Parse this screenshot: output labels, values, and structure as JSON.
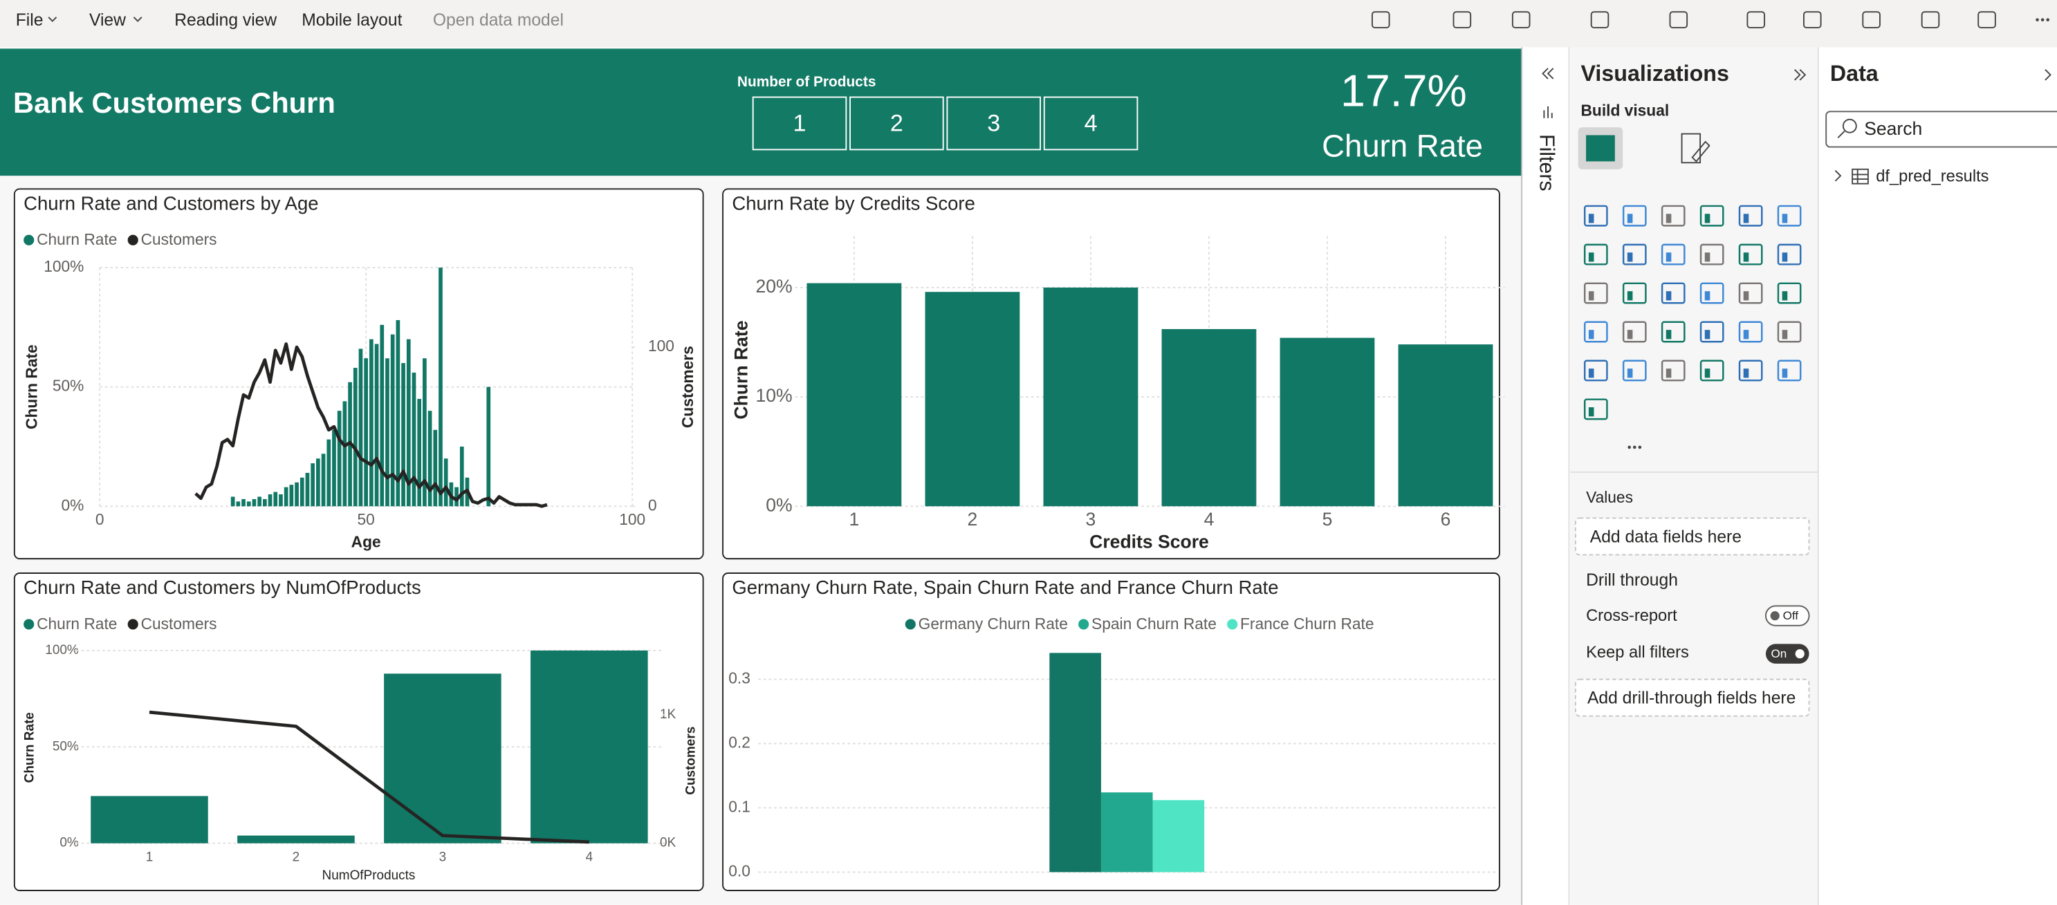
{
  "menu": {
    "items": [
      "File",
      "View",
      "Reading view",
      "Mobile layout",
      "Open data model"
    ]
  },
  "header": {
    "title": "Bank Customers Churn"
  },
  "slicer": {
    "title": "Number of Products",
    "options": [
      "1",
      "2",
      "3",
      "4"
    ]
  },
  "kpi": {
    "value": "17.7%",
    "label": "Churn Rate"
  },
  "chart_data": [
    {
      "type": "combo",
      "title": "Churn Rate and Customers by Age",
      "legend": "top-left",
      "grid": true,
      "x": [
        18,
        19,
        20,
        21,
        22,
        23,
        24,
        25,
        26,
        27,
        28,
        29,
        30,
        31,
        32,
        33,
        34,
        35,
        36,
        37,
        38,
        39,
        40,
        41,
        42,
        43,
        44,
        45,
        46,
        47,
        48,
        49,
        50,
        51,
        52,
        53,
        54,
        55,
        56,
        57,
        58,
        59,
        60,
        61,
        62,
        63,
        64,
        65,
        66,
        67,
        68,
        69,
        70,
        71,
        72,
        73,
        74,
        75,
        76,
        77,
        78,
        79,
        80,
        81,
        82,
        83,
        84
      ],
      "xlim": [
        0,
        100
      ],
      "xticks": [
        0,
        50,
        100
      ],
      "xlabel": "Age",
      "ylabel": "Churn Rate",
      "y2label": "Customers",
      "ylim": [
        0,
        100
      ],
      "yticks": [
        {
          "value": 0,
          "label": "0%"
        },
        {
          "value": 50,
          "label": "50%"
        },
        {
          "value": 100,
          "label": "100%"
        }
      ],
      "y2lim": [
        0,
        150
      ],
      "y2ticks": [
        0,
        100
      ],
      "series": [
        {
          "name": "Churn Rate",
          "kind": "bar",
          "color": "#117865",
          "values": [
            0,
            0,
            0,
            0,
            0,
            0,
            0,
            4,
            2,
            3,
            2,
            3,
            4,
            3,
            5,
            6,
            5,
            8,
            9,
            10,
            12,
            14,
            18,
            20,
            22,
            28,
            32,
            40,
            44,
            52,
            58,
            66,
            62,
            70,
            68,
            76,
            62,
            72,
            78,
            60,
            70,
            56,
            45,
            62,
            40,
            32,
            100,
            20,
            10,
            8,
            25,
            12,
            0,
            0,
            0,
            50,
            0,
            0,
            0,
            0,
            0,
            0,
            0,
            0,
            0,
            0,
            0
          ]
        },
        {
          "name": "Customers",
          "kind": "line",
          "axis": "y2",
          "color": "#252423",
          "values": [
            8,
            5,
            12,
            14,
            25,
            40,
            42,
            38,
            55,
            70,
            68,
            78,
            84,
            92,
            78,
            98,
            90,
            102,
            86,
            100,
            94,
            82,
            72,
            62,
            56,
            48,
            50,
            42,
            38,
            40,
            36,
            30,
            28,
            26,
            30,
            22,
            18,
            20,
            16,
            22,
            14,
            18,
            12,
            16,
            10,
            14,
            8,
            12,
            6,
            4,
            8,
            10,
            3,
            2,
            4,
            5,
            2,
            6,
            4,
            2,
            1,
            1,
            1,
            1,
            1,
            0,
            1
          ]
        }
      ]
    },
    {
      "type": "bar",
      "title": "Churn Rate by Credits Score",
      "grid": true,
      "color": "#117865",
      "categories": [
        "1",
        "2",
        "3",
        "4",
        "5",
        "6"
      ],
      "values": [
        20.4,
        19.6,
        20.0,
        16.2,
        15.4,
        14.8
      ],
      "xlabel": "Credits Score",
      "ylabel": "Churn Rate",
      "ylim": [
        0,
        24.7
      ],
      "yticks": [
        {
          "value": 0,
          "label": "0%"
        },
        {
          "value": 10,
          "label": "10%"
        },
        {
          "value": 20,
          "label": "20%"
        }
      ]
    },
    {
      "type": "combo",
      "title": "Churn Rate and Customers by NumOfProducts",
      "legend": "top-left",
      "grid": true,
      "categories": [
        "1",
        "2",
        "3",
        "4"
      ],
      "xlabel": "NumOfProducts",
      "ylabel": "Churn Rate",
      "y2label": "Customers",
      "ylim": [
        0,
        100
      ],
      "yticks": [
        {
          "value": 0,
          "label": "0%"
        },
        {
          "value": 50,
          "label": "50%"
        },
        {
          "value": 100,
          "label": "100%"
        }
      ],
      "y2lim": [
        0,
        1500
      ],
      "y2ticks": [
        {
          "value": 0,
          "label": "0K"
        },
        {
          "value": 1000,
          "label": "1K"
        }
      ],
      "series": [
        {
          "name": "Churn Rate",
          "kind": "bar",
          "color": "#117865",
          "values": [
            24.5,
            4,
            88,
            100
          ]
        },
        {
          "name": "Customers",
          "kind": "line",
          "axis": "y2",
          "color": "#252423",
          "values": [
            1020,
            910,
            60,
            10
          ]
        }
      ]
    },
    {
      "type": "grouped_bar",
      "title": "Germany Churn Rate, Spain Churn Rate and France Churn Rate",
      "legend": "top-center",
      "grid": true,
      "categories": [
        null
      ],
      "ylim": [
        0,
        0.357
      ],
      "yticks": [
        {
          "value": 0,
          "label": "0.0"
        },
        0.1,
        0.2,
        0.3
      ],
      "series": [
        {
          "name": "Germany Churn Rate",
          "kind": "bar",
          "color": "#137664",
          "values": [
            0.341
          ]
        },
        {
          "name": "Spain Churn Rate",
          "kind": "bar",
          "color": "#22a88e",
          "values": [
            0.124
          ]
        },
        {
          "name": "France Churn Rate",
          "kind": "bar",
          "color": "#4ee4c4",
          "values": [
            0.112
          ]
        }
      ]
    }
  ],
  "filters_pane": {
    "title": "Filters"
  },
  "visualizations_pane": {
    "title": "Visualizations",
    "build_visual": "Build visual",
    "values_label": "Values",
    "values_placeholder": "Add data fields here",
    "drill_through": "Drill through",
    "cross_report": "Cross-report",
    "cross_report_state": "Off",
    "keep_all_filters": "Keep all filters",
    "keep_all_filters_state": "On",
    "drill_placeholder": "Add drill-through fields here"
  },
  "data_pane": {
    "title": "Data",
    "search_placeholder": "Search",
    "tables": [
      "df_pred_results"
    ]
  }
}
